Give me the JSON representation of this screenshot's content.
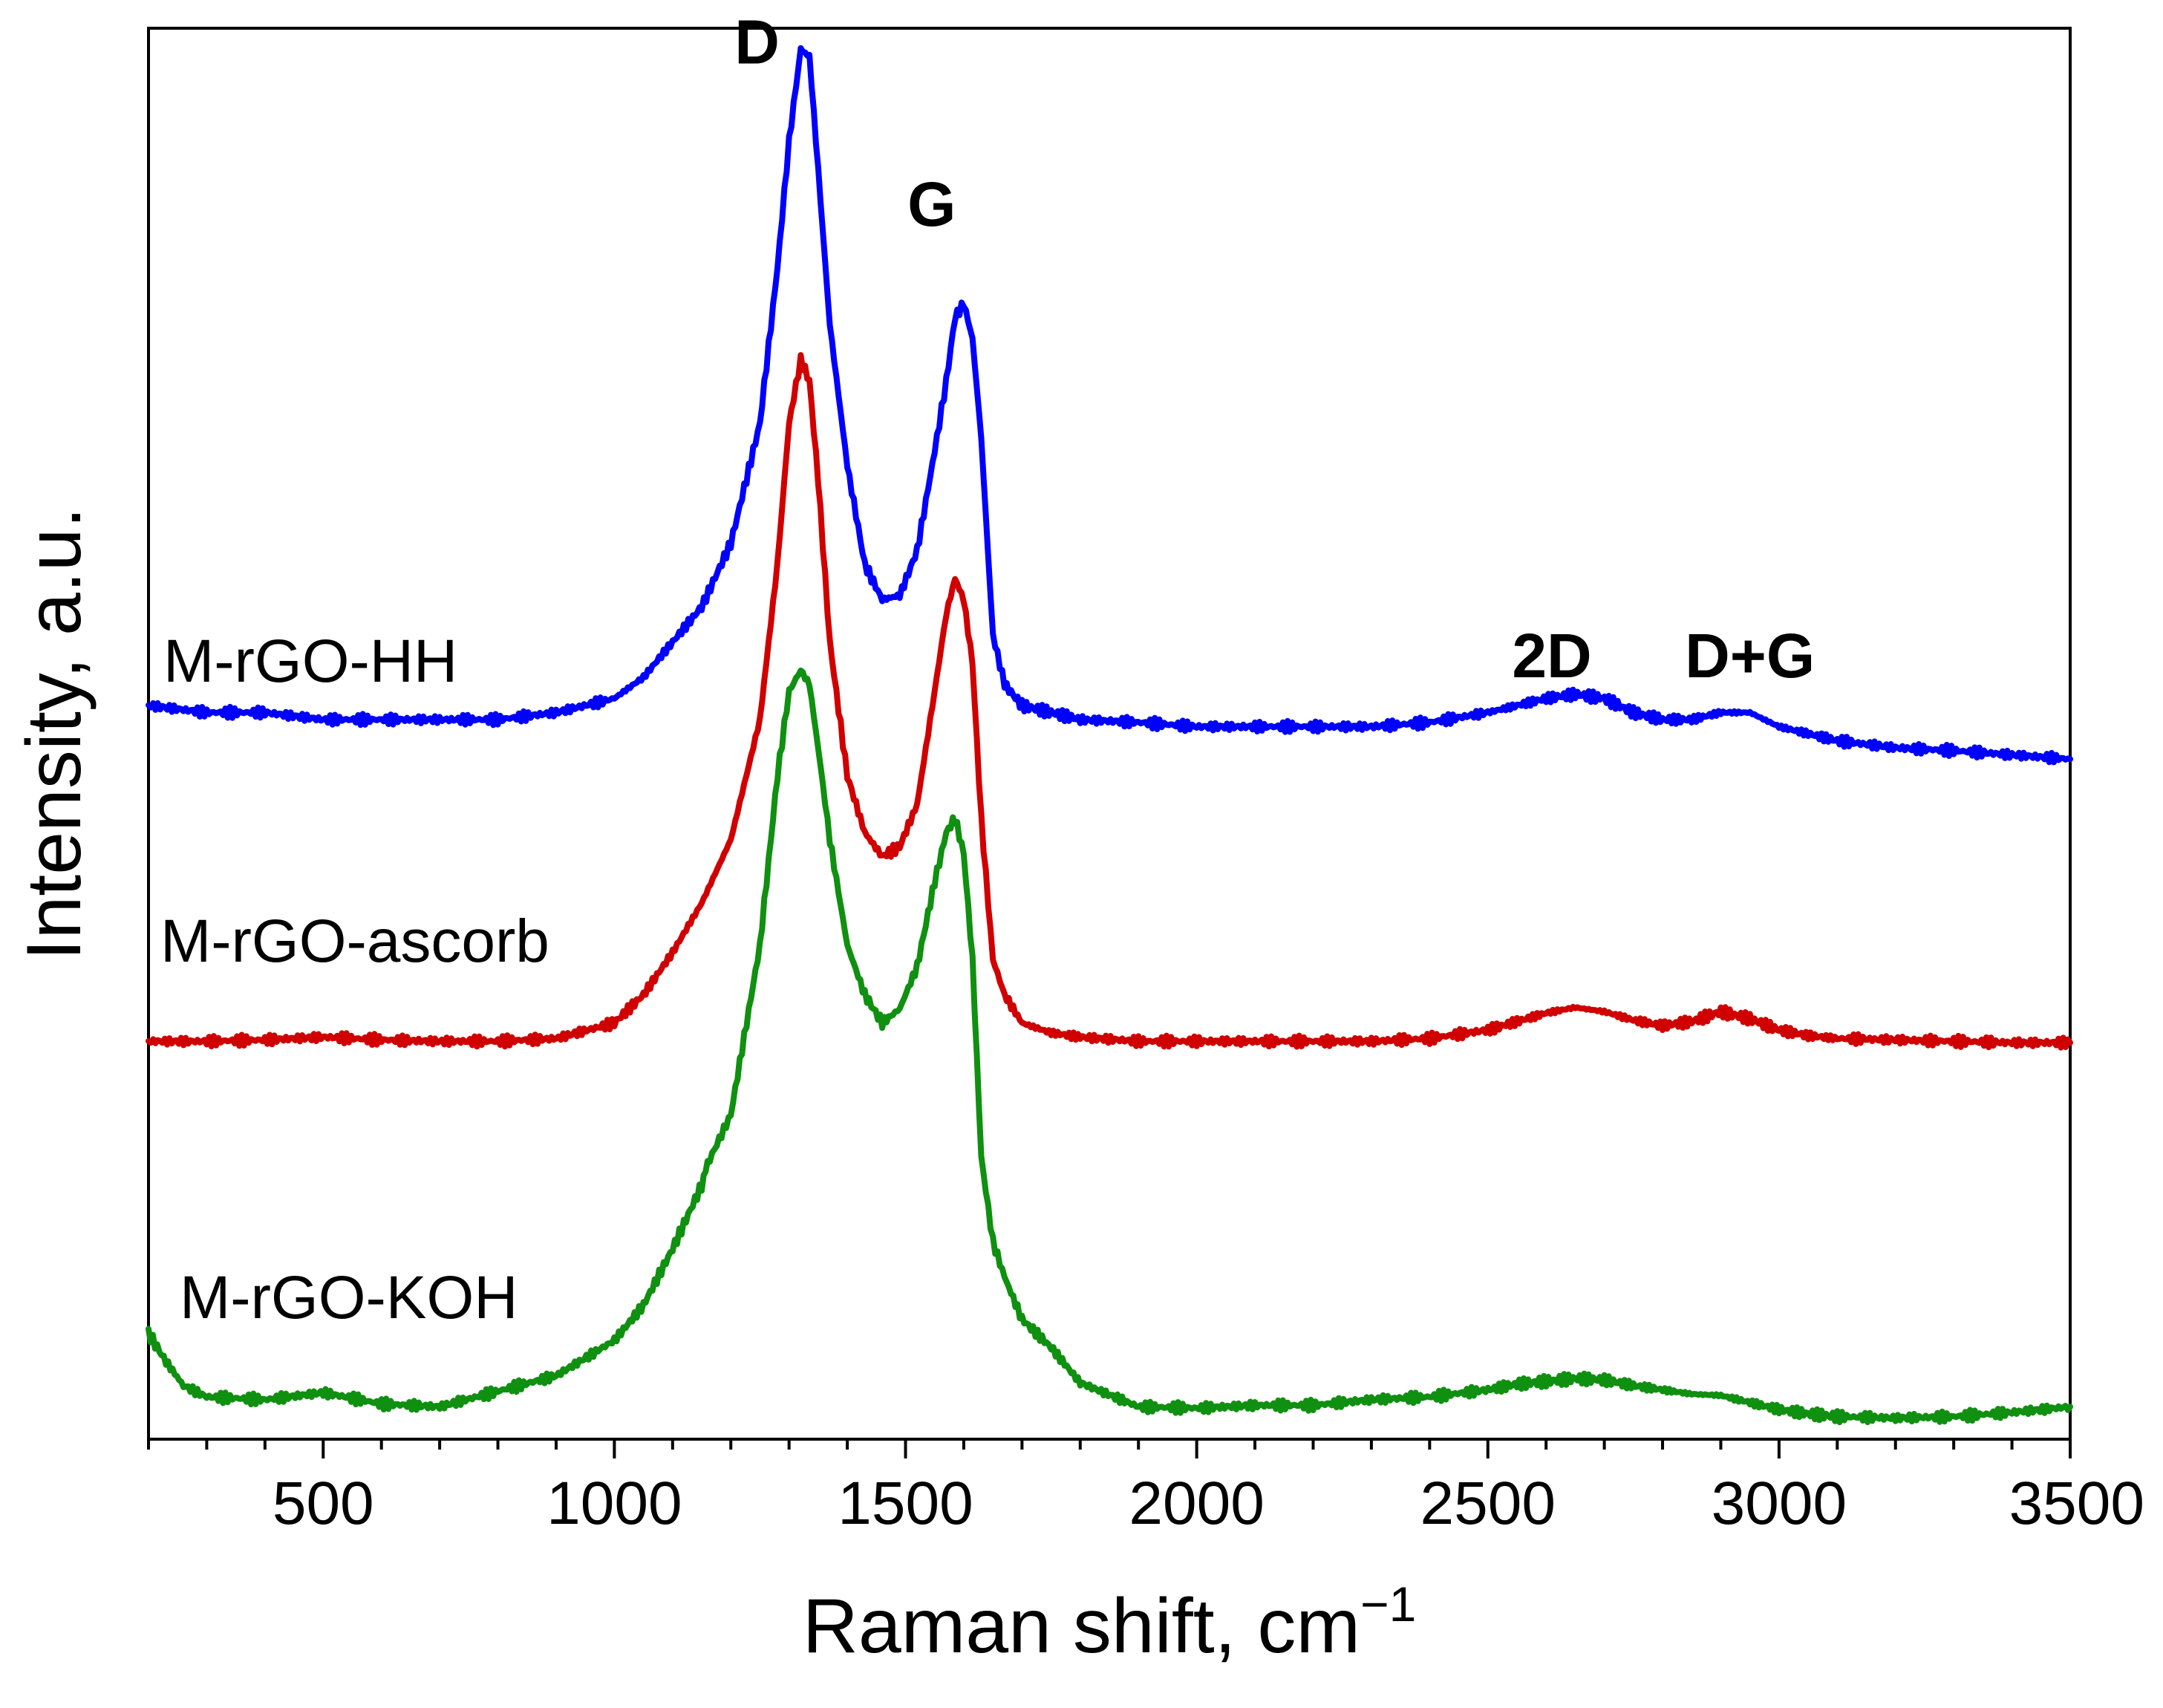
{
  "chart_data": {
    "type": "line",
    "title": "",
    "xlabel": "Raman shift, cm",
    "xlabel_superscript": "−1",
    "ylabel": "Intensity, a.u.",
    "xlim": [
      200,
      3500
    ],
    "ylim": [
      0,
      100
    ],
    "x_ticks": [
      500,
      1000,
      1500,
      2000,
      2500,
      3000,
      3500
    ],
    "x_tick_labels": [
      "500",
      "1000",
      "1500",
      "2000",
      "2500",
      "3000",
      "3500"
    ],
    "x_minor_step": 100,
    "grid": false,
    "legend": "none (labels placed beside curves)",
    "series": [
      {
        "name": "M-rGO-HH",
        "color": "#0000ff",
        "x": [
          200,
          300,
          400,
          500,
          600,
          700,
          800,
          900,
          1000,
          1050,
          1100,
          1150,
          1200,
          1250,
          1280,
          1300,
          1320,
          1335,
          1350,
          1370,
          1400,
          1430,
          1460,
          1490,
          1520,
          1550,
          1570,
          1585,
          1600,
          1615,
          1630,
          1650,
          1670,
          1700,
          1750,
          1800,
          1900,
          2000,
          2100,
          2200,
          2300,
          2400,
          2500,
          2550,
          2600,
          2650,
          2700,
          2750,
          2800,
          2850,
          2900,
          2950,
          3000,
          3050,
          3100,
          3200,
          3300,
          3400,
          3500
        ],
        "y": [
          52,
          51.5,
          51.5,
          51,
          51,
          51,
          51,
          51.5,
          52.5,
          54,
          56.5,
          59,
          63.5,
          72,
          83,
          92,
          98.5,
          98,
          90,
          79,
          69,
          62,
          59.5,
          59.8,
          63,
          70,
          75,
          79.5,
          80.5,
          78,
          71,
          57,
          53.5,
          52,
          51.5,
          51,
          50.8,
          50.5,
          50.5,
          50.5,
          50.5,
          50.8,
          51.5,
          52,
          52.5,
          52.8,
          52.5,
          51.5,
          51,
          51,
          51.5,
          51.5,
          50.5,
          50,
          49.5,
          49,
          48.8,
          48.5,
          48.2
        ]
      },
      {
        "name": "M-rGO-ascorb",
        "color": "#d00000",
        "x": [
          200,
          300,
          400,
          500,
          600,
          700,
          800,
          900,
          1000,
          1050,
          1100,
          1150,
          1200,
          1250,
          1280,
          1300,
          1320,
          1335,
          1350,
          1370,
          1400,
          1430,
          1460,
          1490,
          1520,
          1550,
          1570,
          1585,
          1600,
          1615,
          1630,
          1650,
          1670,
          1700,
          1750,
          1800,
          1900,
          2000,
          2100,
          2200,
          2300,
          2400,
          2500,
          2550,
          2600,
          2650,
          2700,
          2750,
          2800,
          2850,
          2900,
          2950,
          3000,
          3050,
          3100,
          3200,
          3300,
          3400,
          3500
        ],
        "y": [
          28.2,
          28.2,
          28.3,
          28.5,
          28.3,
          28.2,
          28.2,
          28.4,
          29.5,
          31.5,
          34.5,
          38,
          42.5,
          51,
          62,
          72,
          76.5,
          75,
          68,
          56.5,
          47,
          43,
          41.3,
          42,
          45,
          53,
          58.5,
          61,
          59.5,
          55,
          44,
          34,
          31.5,
          29.5,
          28.8,
          28.5,
          28.2,
          28.2,
          28.2,
          28.2,
          28.2,
          28.4,
          29,
          29.6,
          30.2,
          30.6,
          30.3,
          29.7,
          29.3,
          29.6,
          30.3,
          29.8,
          29,
          28.6,
          28.4,
          28.3,
          28.2,
          28.1,
          28.1
        ]
      },
      {
        "name": "M-rGO-KOH",
        "color": "#109010",
        "x": [
          200,
          230,
          260,
          300,
          400,
          500,
          600,
          700,
          800,
          900,
          1000,
          1050,
          1100,
          1150,
          1160,
          1200,
          1250,
          1280,
          1300,
          1320,
          1335,
          1350,
          1370,
          1400,
          1430,
          1460,
          1490,
          1520,
          1550,
          1570,
          1585,
          1600,
          1615,
          1630,
          1650,
          1670,
          1700,
          1750,
          1800,
          1900,
          2000,
          2100,
          2200,
          2300,
          2400,
          2500,
          2550,
          2600,
          2650,
          2700,
          2750,
          2800,
          2850,
          2900,
          2950,
          3000,
          3050,
          3100,
          3200,
          3300,
          3400,
          3500
        ],
        "y": [
          7.5,
          5.5,
          3.8,
          3,
          2.8,
          3.3,
          2.5,
          2.3,
          3.4,
          4.5,
          7,
          9.5,
          13.5,
          18,
          19.5,
          23,
          35,
          47,
          53,
          54.5,
          53.5,
          49,
          42.5,
          35,
          31.5,
          29.5,
          30.5,
          33.5,
          39.5,
          43,
          44,
          41.5,
          34,
          20,
          14,
          11.5,
          8.5,
          6.5,
          4,
          2.3,
          2.2,
          2.4,
          2.4,
          2.8,
          3,
          3.5,
          3.9,
          4.1,
          4.3,
          4.2,
          3.8,
          3.5,
          3.2,
          3.1,
          2.6,
          2.1,
          1.8,
          1.6,
          1.5,
          1.6,
          1.9,
          2.3
        ]
      }
    ],
    "series_labels": [
      "M-rGO-HH",
      "M-rGO-ascorb",
      "M-rGO-KOH"
    ],
    "annotations": [
      {
        "text": "D",
        "x": 1245,
        "y": 97.5
      },
      {
        "text": "G",
        "x": 1545,
        "y": 86
      },
      {
        "text": "2D",
        "x": 2610,
        "y": 54
      },
      {
        "text": "D+G",
        "x": 2950,
        "y": 54
      }
    ]
  }
}
